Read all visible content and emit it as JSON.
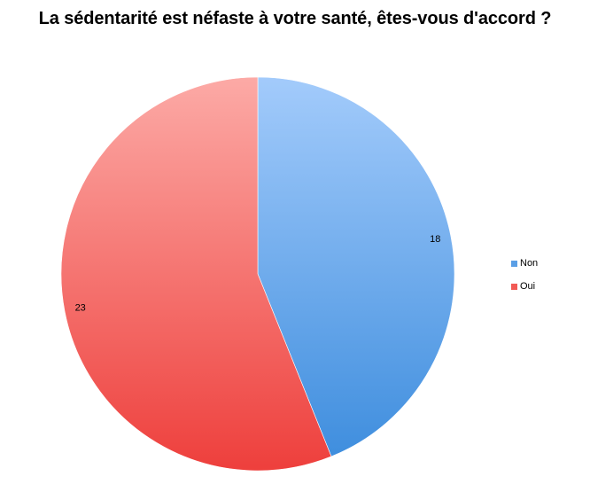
{
  "chart_data": {
    "type": "pie",
    "title": "La sédentarité est néfaste à votre santé, êtes-vous d'accord ?",
    "slices": [
      {
        "name": "Non",
        "value": 18,
        "label": "18",
        "color": "#5a9fe6"
      },
      {
        "name": "Oui",
        "value": 23,
        "label": "23",
        "color": "#f25a55"
      }
    ],
    "legend": {
      "placement": "right",
      "items": [
        {
          "label": "Non",
          "color": "#5a9fe6"
        },
        {
          "label": "Oui",
          "color": "#f25a55"
        }
      ]
    },
    "start_angle": "12 o'clock",
    "direction": "clockwise"
  }
}
